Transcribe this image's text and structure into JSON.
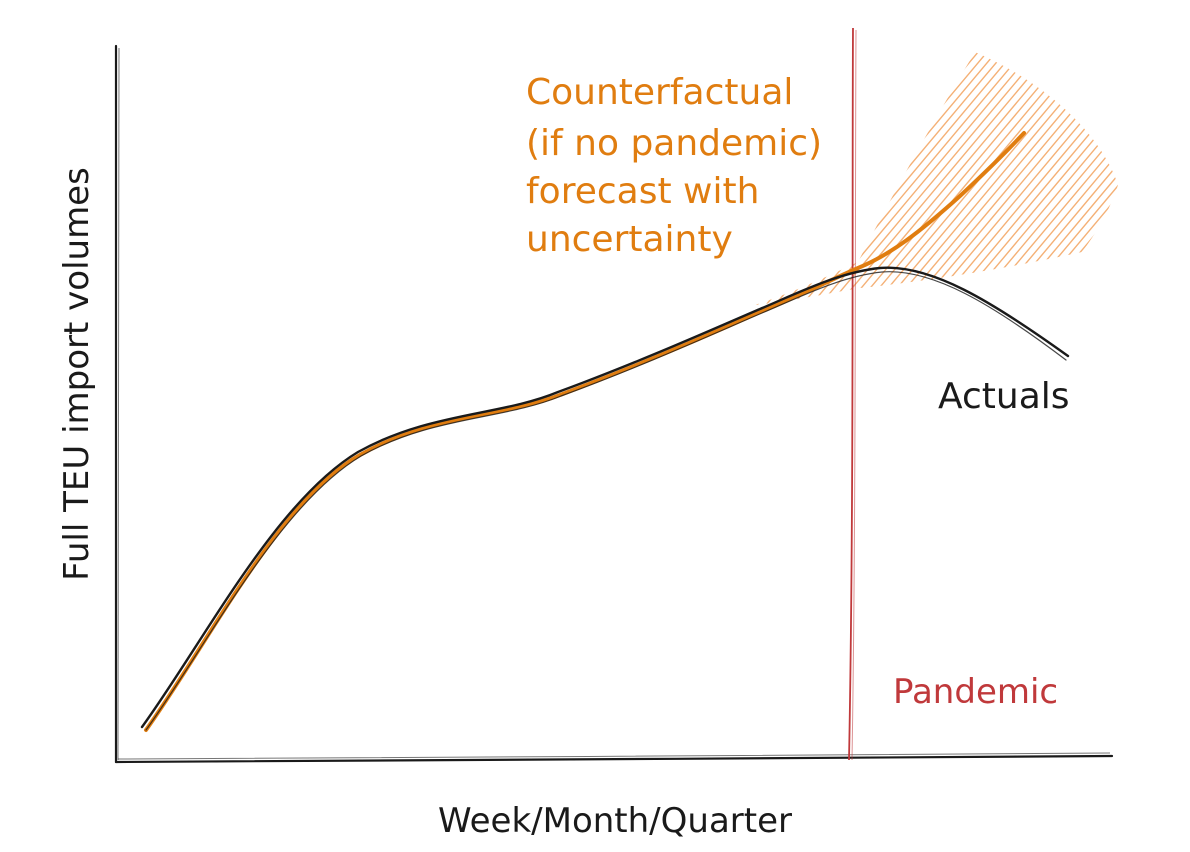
{
  "axes": {
    "x_label": "Week/Month/Quarter",
    "y_label": "Full TEU import volumes"
  },
  "annotations": {
    "counterfactual": [
      "Counterfactual",
      "(if no pandemic)",
      "forecast with",
      "uncertainty"
    ],
    "actuals": "Actuals",
    "pandemic": "Pandemic"
  },
  "colors": {
    "axis": "#1a1a1a",
    "actuals": "#1a1a1a",
    "counterfactual": "#e07d10",
    "uncertainty_hatch": "#f2a35e",
    "pandemic_line": "#c0393b",
    "pandemic_text": "#c0393b"
  }
}
